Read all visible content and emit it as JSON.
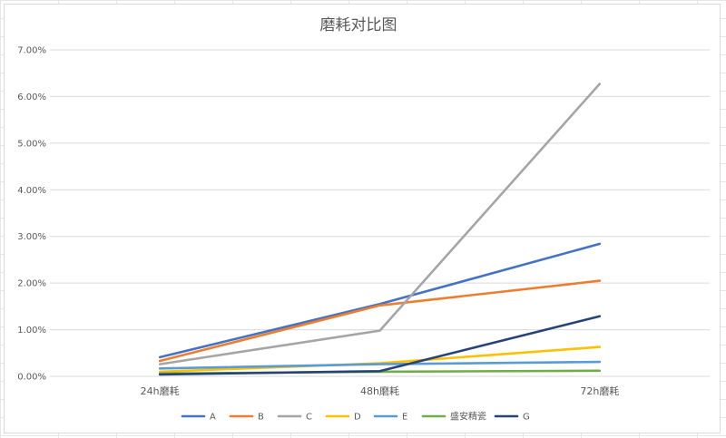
{
  "chart_data": {
    "type": "line",
    "title": "磨耗对比图",
    "categories": [
      "24h磨耗",
      "48h磨耗",
      "72h磨耗"
    ],
    "y_ticks": [
      "0.00%",
      "1.00%",
      "2.00%",
      "3.00%",
      "4.00%",
      "5.00%",
      "6.00%",
      "7.00%"
    ],
    "ylim": [
      0,
      0.07
    ],
    "grid": true,
    "legend_position": "bottom",
    "series": [
      {
        "name": "A",
        "color": "#4472c4",
        "values": [
          0.0041,
          0.0155,
          0.0284
        ]
      },
      {
        "name": "B",
        "color": "#ed7d31",
        "values": [
          0.0033,
          0.0152,
          0.0205
        ]
      },
      {
        "name": "C",
        "color": "#a5a5a5",
        "values": [
          0.0026,
          0.0098,
          0.0627
        ]
      },
      {
        "name": "D",
        "color": "#ffc000",
        "values": [
          0.001,
          0.0028,
          0.0063
        ]
      },
      {
        "name": "E",
        "color": "#5b9bd5",
        "values": [
          0.0017,
          0.0026,
          0.0031
        ]
      },
      {
        "name": "盛安精瓷",
        "color": "#70ad47",
        "values": [
          0.0006,
          0.001,
          0.0012
        ]
      },
      {
        "name": "G",
        "color": "#264478",
        "values": [
          0.0004,
          0.0011,
          0.0129
        ]
      }
    ]
  }
}
